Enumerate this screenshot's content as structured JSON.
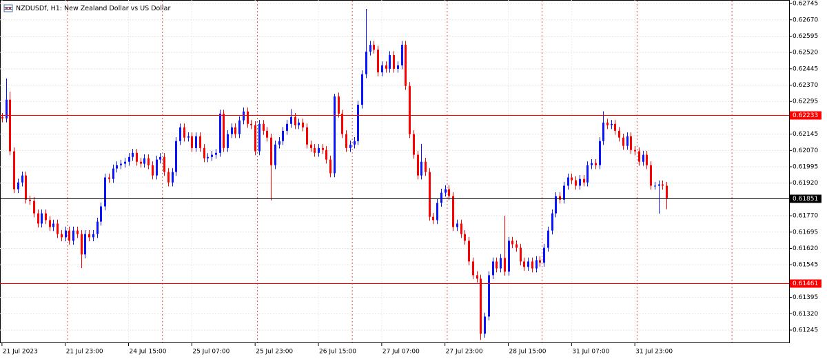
{
  "chart_data": {
    "type": "candlestick",
    "title": "NZDUSDf, H1: New Zealand Dollar vs US Dollar",
    "up_color": "#0a14ff",
    "down_color": "#ff0000",
    "xlim": [
      -0.5,
      199
    ],
    "ylim": [
      0.61188,
      0.62761
    ],
    "grid": true,
    "xticks": [
      {
        "value": 0,
        "label": "21 Jul 2023"
      },
      {
        "value": 16,
        "label": "21 Jul 23:00"
      },
      {
        "value": 32,
        "label": "24 Jul 15:00"
      },
      {
        "value": 48,
        "label": "25 Jul 07:00"
      },
      {
        "value": 64,
        "label": "25 Jul 23:00"
      },
      {
        "value": 80,
        "label": "26 Jul 15:00"
      },
      {
        "value": 96,
        "label": "27 Jul 07:00"
      },
      {
        "value": 112,
        "label": "27 Jul 23:00"
      },
      {
        "value": 128,
        "label": "28 Jul 15:00"
      },
      {
        "value": 144,
        "label": "31 Jul 07:00"
      },
      {
        "value": 160,
        "label": "31 Jul 23:00"
      }
    ],
    "separators": [
      17,
      41,
      65,
      89,
      113,
      137,
      161,
      185
    ],
    "yticks": [
      {
        "value": 0.62745,
        "label": "0.62745"
      },
      {
        "value": 0.6267,
        "label": "0.62670"
      },
      {
        "value": 0.62595,
        "label": "0.62595"
      },
      {
        "value": 0.6252,
        "label": "0.62520"
      },
      {
        "value": 0.62445,
        "label": "0.62445"
      },
      {
        "value": 0.6237,
        "label": "0.62370"
      },
      {
        "value": 0.62295,
        "label": "0.62295"
      },
      {
        "value": 0.62145,
        "label": "0.62145"
      },
      {
        "value": 0.6207,
        "label": "0.62070"
      },
      {
        "value": 0.61995,
        "label": "0.61995"
      },
      {
        "value": 0.6192,
        "label": "0.61920"
      },
      {
        "value": 0.6177,
        "label": "0.61770"
      },
      {
        "value": 0.61695,
        "label": "0.61695"
      },
      {
        "value": 0.6162,
        "label": "0.61620"
      },
      {
        "value": 0.61545,
        "label": "0.61545"
      },
      {
        "value": 0.61395,
        "label": "0.61395"
      },
      {
        "value": 0.6132,
        "label": "0.61320"
      },
      {
        "value": 0.61245,
        "label": "0.61245"
      }
    ],
    "price_lines": [
      {
        "value": 0.62233,
        "color": "#ff0000"
      },
      {
        "value": 0.61851,
        "color": "#000000"
      },
      {
        "value": 0.61461,
        "color": "#ff0000"
      }
    ],
    "open": [
      0.62224,
      0.62217,
      0.62303,
      0.62066,
      0.61892,
      0.61923,
      0.61955,
      0.61844,
      0.61838,
      0.61781,
      0.61734,
      0.61781,
      0.6175,
      0.61718,
      0.61734,
      0.61686,
      0.61671,
      0.61702,
      0.61655,
      0.61702,
      0.61686,
      0.61592,
      0.61686,
      0.61671,
      0.61686,
      0.61743,
      0.61813,
      0.61946,
      0.61939,
      0.61987,
      0.62002,
      0.62009,
      0.62018,
      0.6204,
      0.62059,
      0.62018,
      0.62009,
      0.62034,
      0.62002,
      0.61955,
      0.62028,
      0.6204,
      0.61971,
      0.61923,
      0.61971,
      0.62113,
      0.62176,
      0.62129,
      0.62135,
      0.62081,
      0.62135,
      0.62081,
      0.62034,
      0.6204,
      0.6205,
      0.62059,
      0.62239,
      0.62081,
      0.62145,
      0.62176,
      0.62145,
      0.62208,
      0.62249,
      0.62192,
      0.62186,
      0.62066,
      0.62192,
      0.6216,
      0.62129,
      0.62002,
      0.62097,
      0.62113,
      0.6216,
      0.62192,
      0.62224,
      0.62186,
      0.62198,
      0.62176,
      0.62097,
      0.62081,
      0.62059,
      0.62081,
      0.62072,
      0.62028,
      0.61965,
      0.62318,
      0.62239,
      0.62145,
      0.62081,
      0.62097,
      0.62113,
      0.6228,
      0.6242,
      0.62524,
      0.62555,
      0.62533,
      0.62429,
      0.62461,
      0.62445,
      0.62508,
      0.62445,
      0.62461,
      0.62555,
      0.62366,
      0.62145,
      0.6205,
      0.61955,
      0.62018,
      0.61971,
      0.61765,
      0.6175,
      0.61829,
      0.61876,
      0.61892,
      0.6186,
      0.61718,
      0.61734,
      0.61686,
      0.61655,
      0.6156,
      0.61497,
      0.61481,
      0.61228,
      0.61307,
      0.61497,
      0.6156,
      0.61528,
      0.61576,
      0.61513,
      0.61655,
      0.61639,
      0.61623,
      0.6156,
      0.61535,
      0.6156,
      0.61528,
      0.61566,
      0.61554,
      0.61623,
      0.61702,
      0.61781,
      0.6186,
      0.61844,
      0.61908,
      0.61946,
      0.61933,
      0.61908,
      0.61939,
      0.61923,
      0.62002,
      0.62012,
      0.62002,
      0.62113,
      0.62198,
      0.62186,
      0.62192,
      0.6216,
      0.62129,
      0.62091,
      0.62135,
      0.62072,
      0.62066,
      0.62018,
      0.6205,
      0.62002,
      0.61908,
      0.61908,
      0.61914,
      0.61908
    ],
    "high": [
      0.62242,
      0.624,
      0.6234,
      0.62084,
      0.61941,
      0.61973,
      0.61973,
      0.61862,
      0.61856,
      0.61799,
      0.61799,
      0.61799,
      0.61768,
      0.61752,
      0.61752,
      0.61704,
      0.6172,
      0.6172,
      0.6172,
      0.6172,
      0.61704,
      0.61704,
      0.61704,
      0.61704,
      0.61761,
      0.61831,
      0.61964,
      0.61964,
      0.62005,
      0.6202,
      0.62027,
      0.62036,
      0.62058,
      0.62077,
      0.62077,
      0.62036,
      0.62052,
      0.62052,
      0.6202,
      0.62046,
      0.62058,
      0.62058,
      0.61989,
      0.61989,
      0.62131,
      0.62194,
      0.62194,
      0.62153,
      0.62153,
      0.62153,
      0.62153,
      0.62099,
      0.62058,
      0.62068,
      0.62077,
      0.62257,
      0.62257,
      0.62163,
      0.62194,
      0.62194,
      0.62226,
      0.62267,
      0.62267,
      0.6221,
      0.62204,
      0.6221,
      0.6221,
      0.62178,
      0.62147,
      0.62115,
      0.62131,
      0.62178,
      0.6221,
      0.6226,
      0.62242,
      0.62216,
      0.62216,
      0.62194,
      0.62115,
      0.62099,
      0.62099,
      0.62099,
      0.6209,
      0.62046,
      0.6233,
      0.62336,
      0.62257,
      0.62163,
      0.62115,
      0.62131,
      0.62298,
      0.62438,
      0.6272,
      0.62573,
      0.62573,
      0.62551,
      0.62479,
      0.62479,
      0.62526,
      0.62526,
      0.62479,
      0.62573,
      0.62573,
      0.62384,
      0.62163,
      0.62068,
      0.621,
      0.62036,
      0.61989,
      0.61783,
      0.61847,
      0.61894,
      0.6191,
      0.6191,
      0.61878,
      0.61752,
      0.61752,
      0.61704,
      0.61673,
      0.61578,
      0.61515,
      0.61499,
      0.61325,
      0.61515,
      0.61578,
      0.61578,
      0.61594,
      0.6177,
      0.61673,
      0.61673,
      0.61657,
      0.61641,
      0.61578,
      0.61578,
      0.61578,
      0.61584,
      0.61584,
      0.61641,
      0.6172,
      0.61799,
      0.61878,
      0.61878,
      0.61926,
      0.61964,
      0.61964,
      0.61951,
      0.61957,
      0.61957,
      0.6202,
      0.6203,
      0.6203,
      0.62131,
      0.6225,
      0.62216,
      0.6221,
      0.6221,
      0.62178,
      0.62147,
      0.62153,
      0.62153,
      0.6209,
      0.62084,
      0.62068,
      0.62068,
      0.6202,
      0.61926,
      0.61932,
      0.61932,
      0.61926
    ],
    "low": [
      0.62199,
      0.62199,
      0.62048,
      0.61874,
      0.61874,
      0.61905,
      0.61826,
      0.6182,
      0.61763,
      0.61716,
      0.61716,
      0.61732,
      0.617,
      0.617,
      0.61668,
      0.61653,
      0.61653,
      0.61637,
      0.61637,
      0.61668,
      0.6153,
      0.61574,
      0.61653,
      0.61653,
      0.61668,
      0.61725,
      0.61795,
      0.61921,
      0.61921,
      0.61969,
      0.61984,
      0.61991,
      0.62,
      0.62022,
      0.62,
      0.61991,
      0.61991,
      0.61984,
      0.61937,
      0.61937,
      0.6201,
      0.61953,
      0.61905,
      0.61905,
      0.61953,
      0.62095,
      0.62111,
      0.62111,
      0.62063,
      0.62063,
      0.62063,
      0.62016,
      0.62016,
      0.62022,
      0.62032,
      0.62041,
      0.62063,
      0.62063,
      0.62127,
      0.62127,
      0.62127,
      0.6219,
      0.62174,
      0.62168,
      0.62048,
      0.62048,
      0.62142,
      0.62111,
      0.6184,
      0.61984,
      0.62079,
      0.62095,
      0.62142,
      0.62174,
      0.62168,
      0.62168,
      0.62158,
      0.62079,
      0.62063,
      0.62041,
      0.62041,
      0.62054,
      0.6201,
      0.61947,
      0.61947,
      0.62221,
      0.62127,
      0.62063,
      0.62063,
      0.62079,
      0.62095,
      0.62262,
      0.62402,
      0.62506,
      0.62515,
      0.62411,
      0.62411,
      0.62427,
      0.62427,
      0.62427,
      0.62427,
      0.62443,
      0.62348,
      0.62127,
      0.62032,
      0.61937,
      0.61937,
      0.61953,
      0.61747,
      0.61732,
      0.61732,
      0.61811,
      0.61858,
      0.61842,
      0.617,
      0.617,
      0.61668,
      0.61637,
      0.61542,
      0.61479,
      0.61463,
      0.612,
      0.6121,
      0.61289,
      0.61479,
      0.6151,
      0.6151,
      0.61495,
      0.61495,
      0.61621,
      0.61605,
      0.61542,
      0.61517,
      0.61517,
      0.6151,
      0.6151,
      0.61536,
      0.61536,
      0.61605,
      0.61684,
      0.61763,
      0.61826,
      0.61826,
      0.6189,
      0.61915,
      0.6189,
      0.6189,
      0.61905,
      0.61905,
      0.61984,
      0.61984,
      0.61984,
      0.62095,
      0.62168,
      0.62168,
      0.62142,
      0.62111,
      0.62073,
      0.62073,
      0.62054,
      0.62048,
      0.62,
      0.62,
      0.61984,
      0.6189,
      0.6189,
      0.6178,
      0.6189,
      0.618
    ],
    "close": [
      0.62217,
      0.62303,
      0.62066,
      0.61892,
      0.61923,
      0.61955,
      0.61844,
      0.61838,
      0.61781,
      0.61734,
      0.61781,
      0.6175,
      0.61718,
      0.61734,
      0.61686,
      0.61671,
      0.61702,
      0.61655,
      0.61702,
      0.61686,
      0.61592,
      0.61686,
      0.61671,
      0.61686,
      0.61743,
      0.61813,
      0.61946,
      0.61939,
      0.61987,
      0.62002,
      0.62009,
      0.62018,
      0.6204,
      0.62059,
      0.62018,
      0.62009,
      0.62034,
      0.62002,
      0.61955,
      0.62028,
      0.6204,
      0.61971,
      0.61923,
      0.61971,
      0.62113,
      0.62176,
      0.62129,
      0.62135,
      0.62081,
      0.62135,
      0.62081,
      0.62034,
      0.6204,
      0.6205,
      0.62059,
      0.62239,
      0.62081,
      0.62145,
      0.62176,
      0.62145,
      0.62208,
      0.62249,
      0.62192,
      0.62186,
      0.62066,
      0.62192,
      0.6216,
      0.62129,
      0.62002,
      0.62097,
      0.62113,
      0.6216,
      0.62192,
      0.62224,
      0.62186,
      0.62198,
      0.62176,
      0.62097,
      0.62081,
      0.62059,
      0.62081,
      0.62072,
      0.62028,
      0.61965,
      0.62318,
      0.62239,
      0.62145,
      0.62081,
      0.62097,
      0.62113,
      0.6228,
      0.6242,
      0.62524,
      0.62555,
      0.62533,
      0.62429,
      0.62461,
      0.62445,
      0.62508,
      0.62445,
      0.62461,
      0.62555,
      0.62366,
      0.62145,
      0.6205,
      0.61955,
      0.62018,
      0.61971,
      0.61765,
      0.6175,
      0.61829,
      0.61876,
      0.61892,
      0.6186,
      0.61718,
      0.61734,
      0.61686,
      0.61655,
      0.6156,
      0.61497,
      0.61481,
      0.61228,
      0.61307,
      0.61497,
      0.6156,
      0.61528,
      0.61576,
      0.61513,
      0.61655,
      0.61639,
      0.61623,
      0.6156,
      0.61535,
      0.6156,
      0.61528,
      0.61566,
      0.61554,
      0.61623,
      0.61702,
      0.61781,
      0.6186,
      0.61844,
      0.61908,
      0.61946,
      0.61933,
      0.61908,
      0.61939,
      0.61923,
      0.62002,
      0.62012,
      0.62002,
      0.62113,
      0.62198,
      0.62186,
      0.62192,
      0.6216,
      0.62129,
      0.62091,
      0.62135,
      0.62072,
      0.62066,
      0.62018,
      0.6205,
      0.62002,
      0.61908,
      0.61908,
      0.61914,
      0.61908,
      0.61851
    ]
  }
}
